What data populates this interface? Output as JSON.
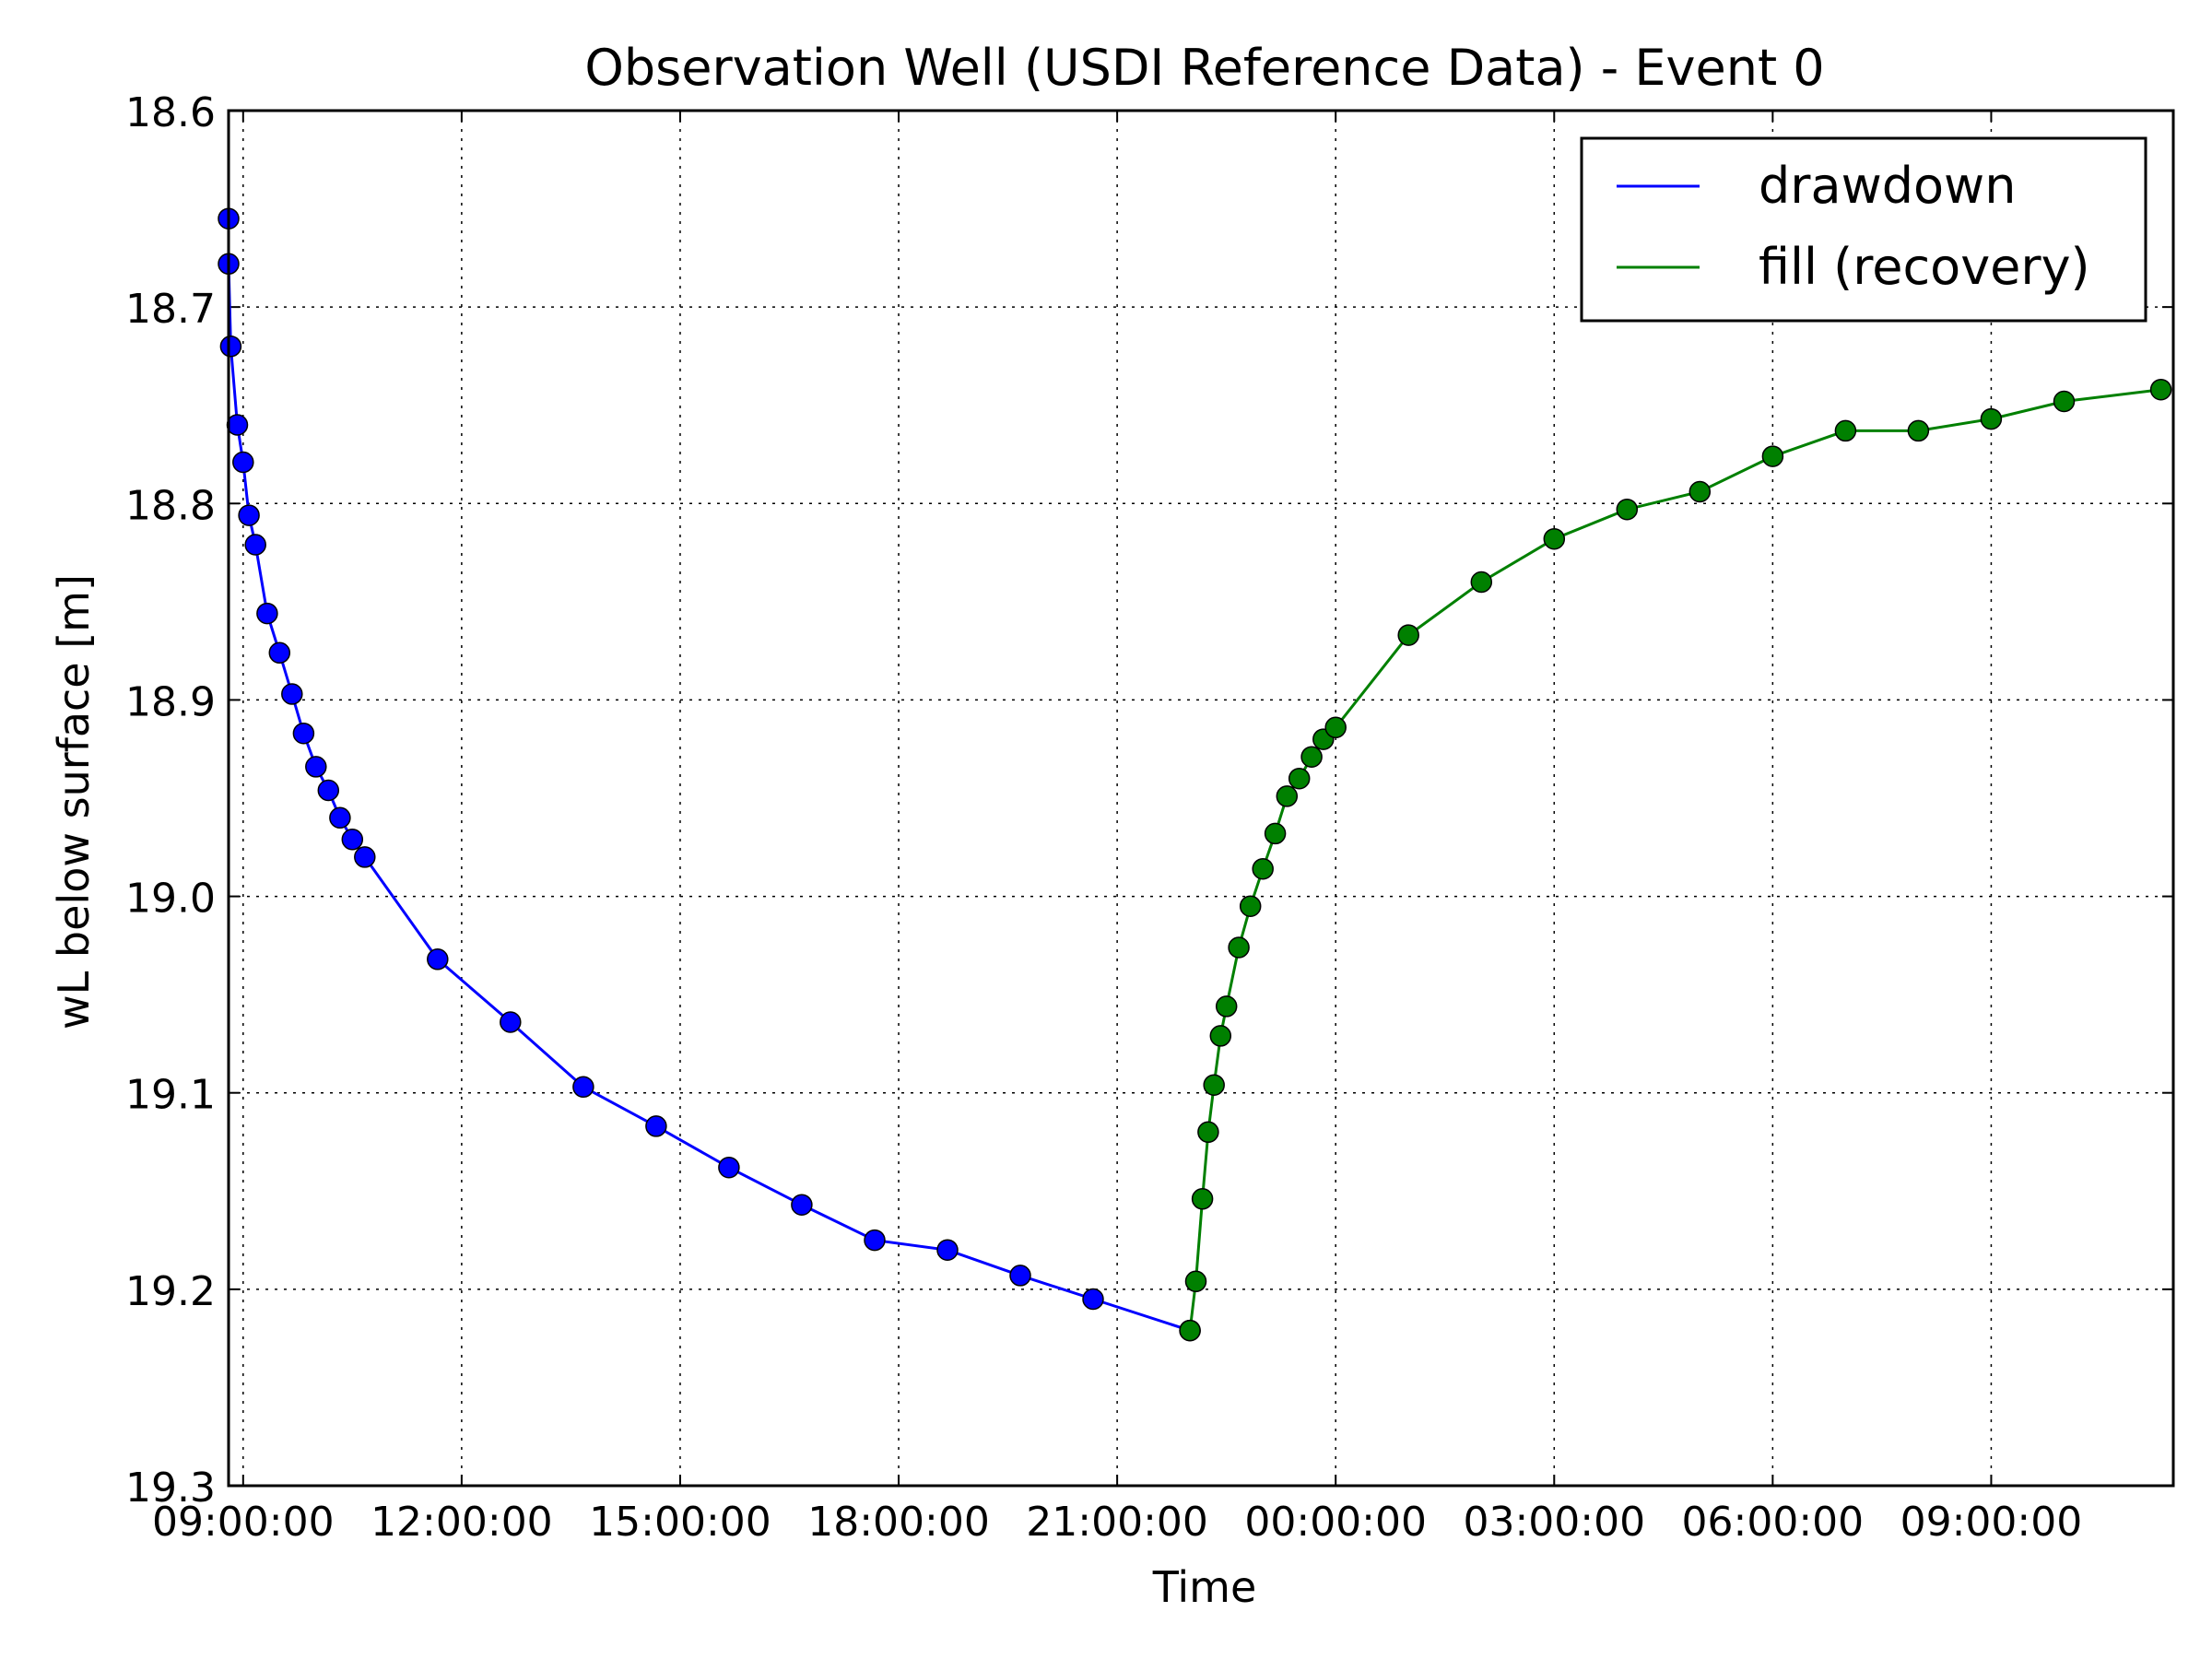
{
  "chart_data": {
    "type": "line",
    "title": "Observation Well (USDI Reference Data) - Event 0",
    "xlabel": "Time",
    "ylabel": "wL below surface [m]",
    "x_unit": "hours",
    "x_origin_label": "09:00:00 (day 1)",
    "xlim": [
      -0.2,
      26.5
    ],
    "ylim": [
      19.3,
      18.6
    ],
    "y_inverted": true,
    "grid": true,
    "legend_position": "top-right",
    "y_ticks": [
      "18.6",
      "18.7",
      "18.8",
      "18.9",
      "19.0",
      "19.1",
      "19.2",
      "19.3"
    ],
    "x_ticks": [
      {
        "x": 0,
        "label": "09:00:00"
      },
      {
        "x": 3,
        "label": "12:00:00"
      },
      {
        "x": 6,
        "label": "15:00:00"
      },
      {
        "x": 9,
        "label": "18:00:00"
      },
      {
        "x": 12,
        "label": "21:00:00"
      },
      {
        "x": 15,
        "label": "00:00:00"
      },
      {
        "x": 18,
        "label": "03:00:00"
      },
      {
        "x": 21,
        "label": "06:00:00"
      },
      {
        "x": 24,
        "label": "09:00:00"
      }
    ],
    "series": [
      {
        "name": "drawdown",
        "color": "#0000ff",
        "x": [
          -0.33,
          -0.25,
          -0.17,
          -0.08,
          0.0,
          0.08,
          0.17,
          0.33,
          0.5,
          0.67,
          0.83,
          1.0,
          1.17,
          1.33,
          1.5,
          1.67,
          2.67,
          3.67,
          4.67,
          5.67,
          6.67,
          7.67,
          8.67,
          9.67,
          10.67,
          11.67,
          13.0
        ],
        "y": [
          18.655,
          18.678,
          18.72,
          18.76,
          18.779,
          18.806,
          18.821,
          18.856,
          18.876,
          18.897,
          18.917,
          18.934,
          18.946,
          18.96,
          18.971,
          18.98,
          19.032,
          19.064,
          19.097,
          19.117,
          19.138,
          19.157,
          19.175,
          19.18,
          19.193,
          19.205,
          19.221
        ]
      },
      {
        "name": "fill (recovery)",
        "color": "#008000",
        "x": [
          13.0,
          13.08,
          13.17,
          13.25,
          13.33,
          13.42,
          13.5,
          13.67,
          13.83,
          14.0,
          14.17,
          14.33,
          14.5,
          14.67,
          14.83,
          15.0,
          16.0,
          17.0,
          18.0,
          19.0,
          20.0,
          21.0,
          22.0,
          23.0,
          24.0,
          25.0,
          26.33
        ],
        "y": [
          19.221,
          19.196,
          19.154,
          19.12,
          19.096,
          19.071,
          19.056,
          19.026,
          19.005,
          18.986,
          18.968,
          18.949,
          18.94,
          18.929,
          18.92,
          18.914,
          18.867,
          18.84,
          18.818,
          18.803,
          18.794,
          18.776,
          18.763,
          18.763,
          18.757,
          18.748,
          18.742
        ]
      }
    ]
  }
}
